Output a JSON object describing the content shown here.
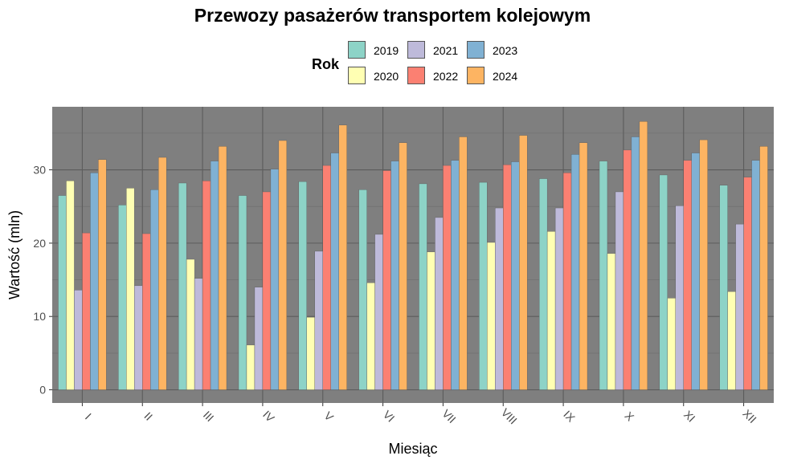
{
  "chart_data": {
    "type": "bar",
    "title": "Przewozy pasażerów transportem kolejowym",
    "xlabel": "Miesiąc",
    "ylabel": "Wartość (mln)",
    "ylim": [
      -1.8,
      38.6
    ],
    "yticks": [
      0,
      10,
      20,
      30
    ],
    "legend_title": "Rok",
    "legend_position": "top",
    "grid": true,
    "panel_background": "#7f7f7f",
    "categories": [
      "I",
      "II",
      "III",
      "IV",
      "V",
      "VI",
      "VII",
      "VIII",
      "IX",
      "X",
      "XI",
      "XII"
    ],
    "series": [
      {
        "name": "2019",
        "color": "#8dd3c7",
        "values": [
          26.5,
          25.2,
          28.2,
          26.5,
          28.4,
          27.3,
          28.1,
          28.3,
          28.8,
          31.2,
          29.3,
          27.9
        ]
      },
      {
        "name": "2020",
        "color": "#ffffb3",
        "values": [
          28.5,
          27.5,
          17.8,
          6.1,
          9.9,
          14.6,
          18.8,
          20.1,
          21.6,
          18.6,
          12.5,
          13.4
        ]
      },
      {
        "name": "2021",
        "color": "#bebada",
        "values": [
          13.6,
          14.2,
          15.2,
          14.0,
          18.9,
          21.2,
          23.5,
          24.8,
          24.8,
          27.0,
          25.1,
          22.6
        ]
      },
      {
        "name": "2022",
        "color": "#fb8072",
        "values": [
          21.4,
          21.3,
          28.5,
          27.0,
          30.6,
          29.9,
          30.6,
          30.7,
          29.6,
          32.7,
          31.3,
          29.0
        ]
      },
      {
        "name": "2023",
        "color": "#80b1d3",
        "values": [
          29.6,
          27.3,
          31.2,
          30.1,
          32.3,
          31.2,
          31.3,
          31.1,
          32.1,
          34.5,
          32.3,
          31.3
        ]
      },
      {
        "name": "2024",
        "color": "#fdb462",
        "values": [
          31.4,
          31.7,
          33.2,
          34.0,
          36.1,
          33.7,
          34.5,
          34.7,
          33.7,
          36.6,
          34.1,
          33.2
        ]
      }
    ]
  }
}
